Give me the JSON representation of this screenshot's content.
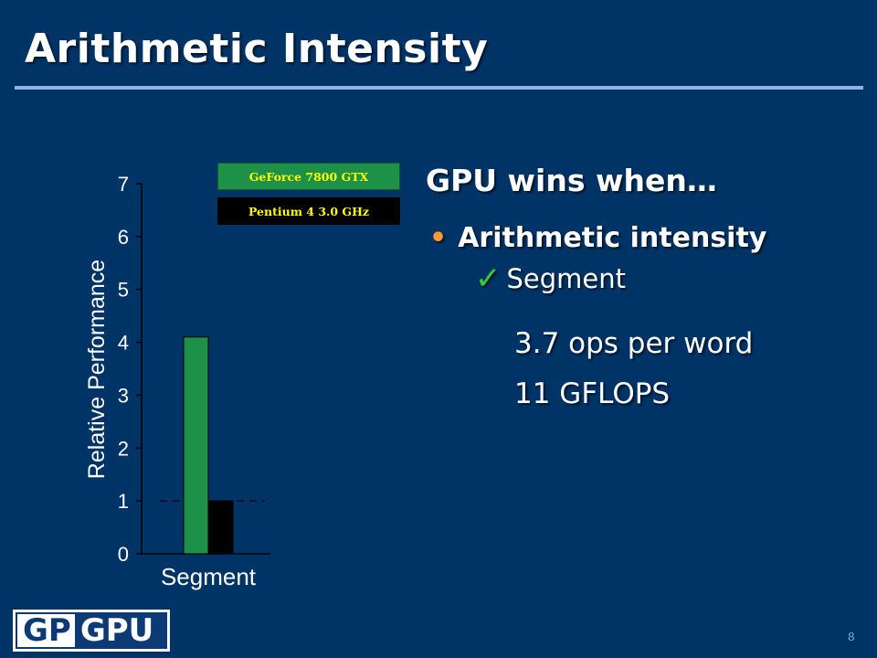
{
  "slide": {
    "title": "Arithmetic Intensity",
    "page_number": "8"
  },
  "content": {
    "heading": "GPU wins when…",
    "bullet": "Arithmetic intensity",
    "sub_bullet": "Segment",
    "stats": [
      "3.7 ops per word",
      "11 GFLOPS"
    ]
  },
  "logo": {
    "part1": "GP",
    "part2": "GPU"
  },
  "colors": {
    "background": "#003366",
    "gpu_bar": "#1e9148",
    "cpu_bar": "#000000",
    "bullet": "#ff9933",
    "check": "#33cc33",
    "legend_text": "#ffff00"
  },
  "chart_data": {
    "type": "bar",
    "categories": [
      "Segment"
    ],
    "series": [
      {
        "name": "GeForce 7800 GTX",
        "values": [
          4.1
        ]
      },
      {
        "name": "Pentium 4 3.0 GHz",
        "values": [
          1.0
        ]
      }
    ],
    "xlabel": "",
    "ylabel": "Relative Performance",
    "ylim": [
      0,
      7
    ],
    "yticks": [
      "0",
      "1",
      "2",
      "3",
      "4",
      "5",
      "6",
      "7"
    ],
    "reference_line": 1,
    "legend_placement": "top-right"
  }
}
